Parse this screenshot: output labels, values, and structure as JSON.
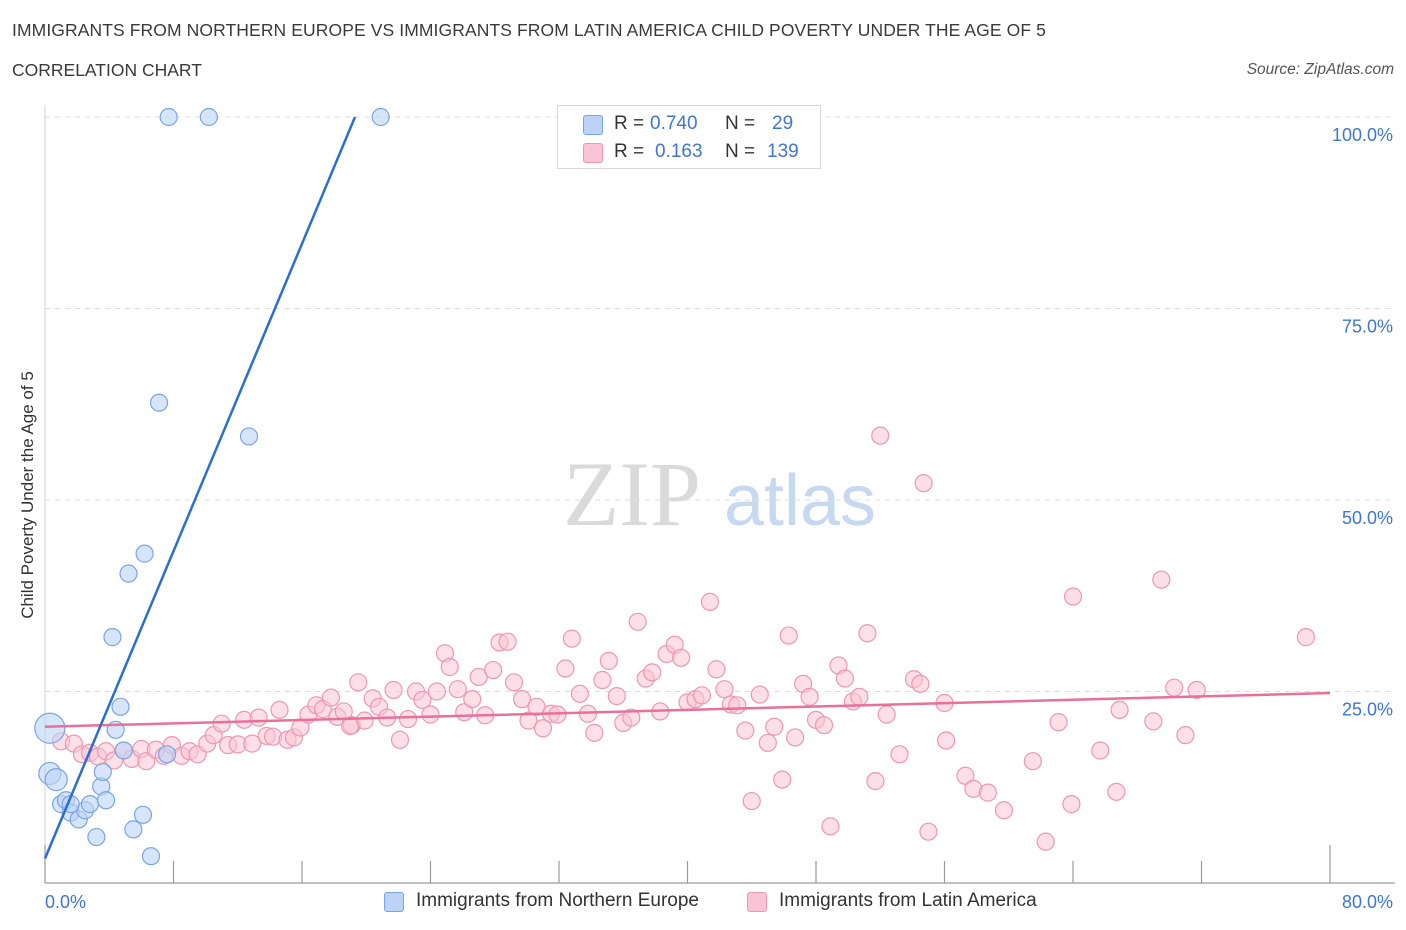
{
  "header": {
    "title": "IMMIGRANTS FROM NORTHERN EUROPE VS IMMIGRANTS FROM LATIN AMERICA CHILD POVERTY UNDER THE AGE OF 5",
    "subtitle": "CORRELATION CHART",
    "source": "Source: ZipAtlas.com"
  },
  "legend": {
    "series1": {
      "r_label": "R =",
      "r_value": "0.740",
      "n_label": "N =",
      "n_value": "29"
    },
    "series2": {
      "r_label": "R =",
      "r_value": "0.163",
      "n_label": "N =",
      "n_value": "139"
    }
  },
  "bottom_legend": {
    "series1_label": "Immigrants from Northern Europe",
    "series2_label": "Immigrants from Latin America"
  },
  "watermark": {
    "zip": "ZIP",
    "atlas": "atlas"
  },
  "colors": {
    "blue_fill": "#bcd3f6",
    "blue_stroke": "#7ba4e6",
    "blue_line": "#2a6fd0",
    "pink_fill": "#f9c4d4",
    "pink_stroke": "#ee97b3",
    "pink_line": "#e8709a",
    "axis_text": "#3f76d0"
  },
  "chart_data": {
    "type": "scatter",
    "title": "IMMIGRANTS FROM NORTHERN EUROPE VS IMMIGRANTS FROM LATIN AMERICA CHILD POVERTY UNDER THE AGE OF 5",
    "xlabel": "",
    "ylabel": "Child Poverty Under the Age of 5",
    "xlim": [
      0,
      80
    ],
    "ylim": [
      0,
      100
    ],
    "x_tick_labels": [
      {
        "value": 0,
        "label": "0.0%"
      },
      {
        "value": 80,
        "label": "80.0%"
      }
    ],
    "y_tick_labels": [
      {
        "value": 100,
        "label": "100.0%"
      },
      {
        "value": 75,
        "label": "75.0%"
      },
      {
        "value": 50,
        "label": "50.0%"
      },
      {
        "value": 25,
        "label": "25.0%"
      }
    ],
    "grid": true,
    "series": [
      {
        "name": "Immigrants from Northern Europe",
        "R": 0.74,
        "N": 29,
        "trend": {
          "x": [
            0,
            19.3
          ],
          "y": [
            3.2,
            100
          ]
        },
        "points": [
          [
            0.3,
            20.2,
            3
          ],
          [
            0.3,
            14.3,
            2
          ],
          [
            0.7,
            13.5,
            2
          ],
          [
            1.0,
            10.3,
            1
          ],
          [
            1.3,
            10.8,
            1
          ],
          [
            1.6,
            9.2,
            1
          ],
          [
            2.1,
            8.3,
            1
          ],
          [
            2.5,
            9.5,
            1
          ],
          [
            2.8,
            10.3,
            1
          ],
          [
            3.2,
            6.0,
            1
          ],
          [
            3.5,
            12.6,
            1
          ],
          [
            3.6,
            14.5,
            1
          ],
          [
            3.8,
            10.8,
            1
          ],
          [
            4.2,
            32.1,
            1
          ],
          [
            4.4,
            20.0,
            1
          ],
          [
            4.7,
            23.0,
            1
          ],
          [
            4.9,
            17.3,
            1
          ],
          [
            5.5,
            7.0,
            1
          ],
          [
            6.1,
            8.9,
            1
          ],
          [
            6.2,
            43.0,
            1
          ],
          [
            5.2,
            40.4,
            1
          ],
          [
            6.6,
            3.5,
            1
          ],
          [
            7.7,
            100,
            1
          ],
          [
            10.2,
            100,
            1
          ],
          [
            7.1,
            62.7,
            1
          ],
          [
            12.7,
            58.3,
            1
          ],
          [
            20.9,
            100,
            1
          ],
          [
            7.6,
            16.8,
            1
          ],
          [
            1.6,
            10.3,
            1
          ]
        ]
      },
      {
        "name": "Immigrants from Latin America",
        "R": 0.163,
        "N": 139,
        "trend": {
          "x": [
            0,
            80
          ],
          "y": [
            20.4,
            24.8
          ]
        },
        "points": [
          [
            1.0,
            18.5
          ],
          [
            1.8,
            18.2
          ],
          [
            2.3,
            16.8
          ],
          [
            2.8,
            17.0
          ],
          [
            3.3,
            16.5
          ],
          [
            3.8,
            17.2
          ],
          [
            4.3,
            16.0
          ],
          [
            4.9,
            17.3
          ],
          [
            5.4,
            16.2
          ],
          [
            6.0,
            17.5
          ],
          [
            6.3,
            15.9
          ],
          [
            6.9,
            17.4
          ],
          [
            7.4,
            16.6
          ],
          [
            7.9,
            18.0
          ],
          [
            8.5,
            16.6
          ],
          [
            9.0,
            17.2
          ],
          [
            9.5,
            16.8
          ],
          [
            10.1,
            18.2
          ],
          [
            10.5,
            19.3
          ],
          [
            11.0,
            20.8
          ],
          [
            11.4,
            18.0
          ],
          [
            12.0,
            18.1
          ],
          [
            12.4,
            21.3
          ],
          [
            12.9,
            18.2
          ],
          [
            13.3,
            21.6
          ],
          [
            13.8,
            19.2
          ],
          [
            14.2,
            19.1
          ],
          [
            14.6,
            22.6
          ],
          [
            15.1,
            18.7
          ],
          [
            15.5,
            19.0
          ],
          [
            15.9,
            20.3
          ],
          [
            16.4,
            22.0
          ],
          [
            16.9,
            23.2
          ],
          [
            17.3,
            22.7
          ],
          [
            17.8,
            24.2
          ],
          [
            18.2,
            21.7
          ],
          [
            18.6,
            22.4
          ],
          [
            19.1,
            20.6
          ],
          [
            19.5,
            26.2
          ],
          [
            19.9,
            21.2
          ],
          [
            20.4,
            24.1
          ],
          [
            20.8,
            23.0
          ],
          [
            21.3,
            21.6
          ],
          [
            21.7,
            25.2
          ],
          [
            22.1,
            18.7
          ],
          [
            22.6,
            21.4
          ],
          [
            23.1,
            25.0
          ],
          [
            23.5,
            23.9
          ],
          [
            24.0,
            22.0
          ],
          [
            24.4,
            25.0
          ],
          [
            24.9,
            30.0
          ],
          [
            25.2,
            28.2
          ],
          [
            25.7,
            25.3
          ],
          [
            26.1,
            22.3
          ],
          [
            26.6,
            24.0
          ],
          [
            27.0,
            26.9
          ],
          [
            27.4,
            21.9
          ],
          [
            27.9,
            27.8
          ],
          [
            28.3,
            31.4
          ],
          [
            28.8,
            31.5
          ],
          [
            29.2,
            26.2
          ],
          [
            29.7,
            24.0
          ],
          [
            30.1,
            21.2
          ],
          [
            30.6,
            23.0
          ],
          [
            31.0,
            20.2
          ],
          [
            31.5,
            22.1
          ],
          [
            31.9,
            22.0
          ],
          [
            32.4,
            28.0
          ],
          [
            32.8,
            31.9
          ],
          [
            33.3,
            24.7
          ],
          [
            33.8,
            22.1
          ],
          [
            34.2,
            19.6
          ],
          [
            34.7,
            26.5
          ],
          [
            35.1,
            29.0
          ],
          [
            35.6,
            24.4
          ],
          [
            36.0,
            20.9
          ],
          [
            36.5,
            21.6
          ],
          [
            36.9,
            34.1
          ],
          [
            37.4,
            26.7
          ],
          [
            37.8,
            27.5
          ],
          [
            38.3,
            22.4
          ],
          [
            38.7,
            29.9
          ],
          [
            39.2,
            31.1
          ],
          [
            39.6,
            29.4
          ],
          [
            40.0,
            23.6
          ],
          [
            40.5,
            24.0
          ],
          [
            40.9,
            24.5
          ],
          [
            41.4,
            36.7
          ],
          [
            41.8,
            27.9
          ],
          [
            42.3,
            25.3
          ],
          [
            42.7,
            23.3
          ],
          [
            43.1,
            23.2
          ],
          [
            43.6,
            19.9
          ],
          [
            44.0,
            10.7
          ],
          [
            44.5,
            24.6
          ],
          [
            45.0,
            18.3
          ],
          [
            45.4,
            20.4
          ],
          [
            45.9,
            13.5
          ],
          [
            46.3,
            32.3
          ],
          [
            46.7,
            19.0
          ],
          [
            47.2,
            26.0
          ],
          [
            47.6,
            24.3
          ],
          [
            48.0,
            21.3
          ],
          [
            48.5,
            20.6
          ],
          [
            48.9,
            7.4
          ],
          [
            49.4,
            28.4
          ],
          [
            49.8,
            26.7
          ],
          [
            50.3,
            23.7
          ],
          [
            50.7,
            24.3
          ],
          [
            51.2,
            32.6
          ],
          [
            51.7,
            13.3
          ],
          [
            52.0,
            58.4
          ],
          [
            52.4,
            22.0
          ],
          [
            53.2,
            16.8
          ],
          [
            54.1,
            26.6
          ],
          [
            54.5,
            26.0
          ],
          [
            54.7,
            52.2
          ],
          [
            55.0,
            6.7
          ],
          [
            56.0,
            23.5
          ],
          [
            56.1,
            18.6
          ],
          [
            57.3,
            14.0
          ],
          [
            57.8,
            12.3
          ],
          [
            58.7,
            11.8
          ],
          [
            59.7,
            9.5
          ],
          [
            61.5,
            15.9
          ],
          [
            62.3,
            5.4
          ],
          [
            63.1,
            21.0
          ],
          [
            63.9,
            10.3
          ],
          [
            64.0,
            37.4
          ],
          [
            65.7,
            17.3
          ],
          [
            66.7,
            11.9
          ],
          [
            66.9,
            22.6
          ],
          [
            69.0,
            21.1
          ],
          [
            69.5,
            39.6
          ],
          [
            70.3,
            25.5
          ],
          [
            71.0,
            19.3
          ],
          [
            71.7,
            25.2
          ],
          [
            78.5,
            32.1
          ],
          [
            19.0,
            20.5
          ]
        ]
      }
    ]
  }
}
